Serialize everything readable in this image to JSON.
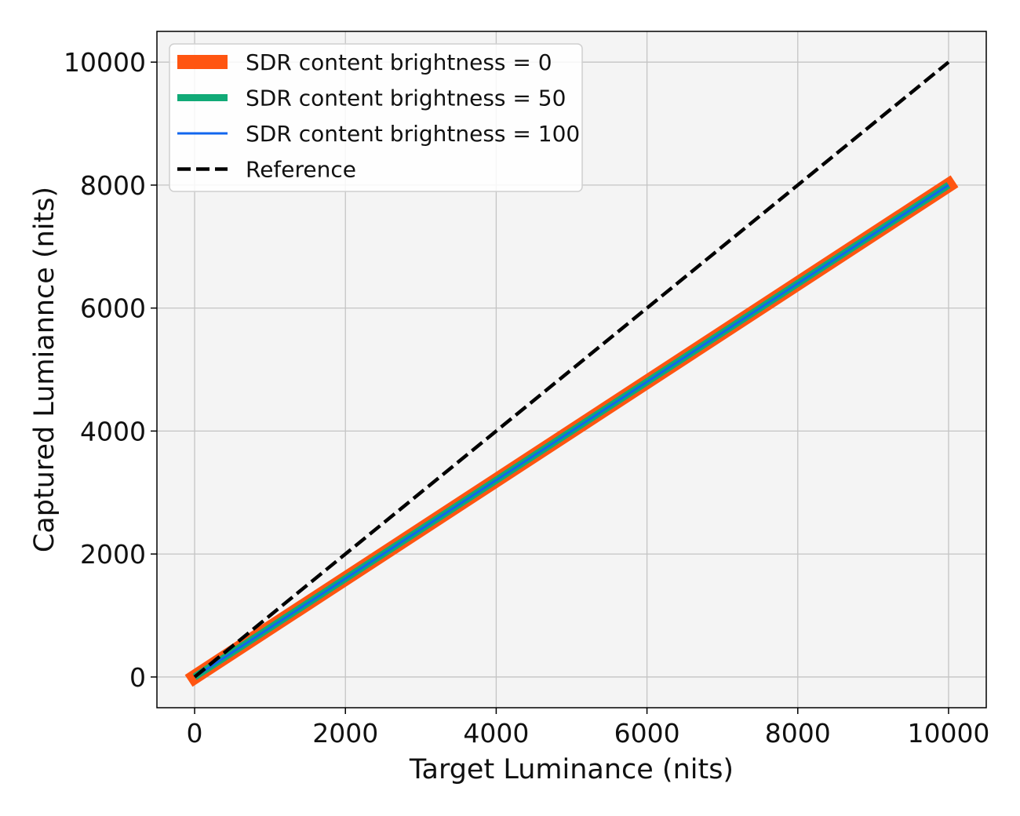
{
  "chart_data": {
    "type": "line",
    "title": "",
    "xlabel": "Target Luminance (nits)",
    "ylabel": "Captured Lumiannce (nits)",
    "xlim": [
      -500,
      10500
    ],
    "ylim": [
      -500,
      10500
    ],
    "xticks": [
      "0",
      "2000",
      "4000",
      "6000",
      "8000",
      "10000"
    ],
    "yticks": [
      "0",
      "2000",
      "4000",
      "6000",
      "8000",
      "10000"
    ],
    "grid": true,
    "legend_position": "top-left",
    "background_color": "#f4f4f4",
    "series": [
      {
        "name": "SDR content brightness = 0",
        "color": "#ff5511",
        "style": "solid-thick",
        "x": [
          0,
          10000
        ],
        "y": [
          0,
          8000
        ]
      },
      {
        "name": "SDR content brightness = 50",
        "color": "#11aa77",
        "style": "solid-medium",
        "x": [
          0,
          10000
        ],
        "y": [
          0,
          8000
        ]
      },
      {
        "name": "SDR content brightness = 100",
        "color": "#1166ee",
        "style": "solid-thin",
        "x": [
          0,
          10000
        ],
        "y": [
          0,
          8000
        ]
      },
      {
        "name": "Reference",
        "color": "#000000",
        "style": "dashed",
        "x": [
          0,
          10000
        ],
        "y": [
          0,
          10000
        ]
      }
    ]
  }
}
